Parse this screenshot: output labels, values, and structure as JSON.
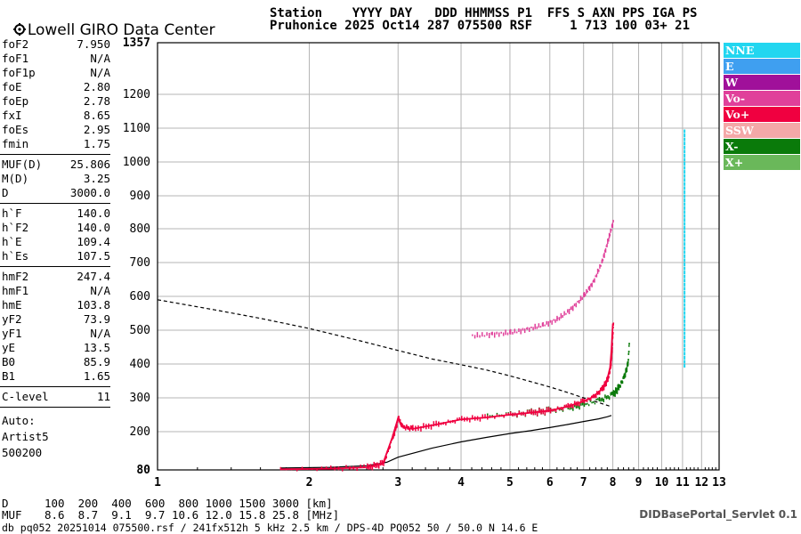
{
  "logo": {
    "text": "Lowell GIRO Data Center"
  },
  "header": {
    "line1": "Station    YYYY DAY   DDD HHMMSS P1  FFS S AXN PPS IGA PS",
    "line2": "Pruhonice 2025 Oct14 287 075500 RSF     1 713 100 03+ 21"
  },
  "params": {
    "group1": [
      {
        "k": "foF2",
        "v": "7.950"
      },
      {
        "k": "foF1",
        "v": "N/A"
      },
      {
        "k": "foF1p",
        "v": "N/A"
      },
      {
        "k": "foE",
        "v": "2.80"
      },
      {
        "k": "foEp",
        "v": "2.78"
      },
      {
        "k": "fxI",
        "v": "8.65"
      },
      {
        "k": "foEs",
        "v": "2.95"
      },
      {
        "k": "fmin",
        "v": "1.75"
      }
    ],
    "group2": [
      {
        "k": "MUF(D)",
        "v": "25.806"
      },
      {
        "k": "M(D)",
        "v": "3.25"
      },
      {
        "k": "D",
        "v": "3000.0"
      }
    ],
    "group3": [
      {
        "k": "h`F",
        "v": "140.0"
      },
      {
        "k": "h`F2",
        "v": "140.0"
      },
      {
        "k": "h`E",
        "v": "109.4"
      },
      {
        "k": "h`Es",
        "v": "107.5"
      }
    ],
    "group4": [
      {
        "k": "hmF2",
        "v": "247.4"
      },
      {
        "k": "hmF1",
        "v": "N/A"
      },
      {
        "k": "hmE",
        "v": "103.8"
      },
      {
        "k": "yF2",
        "v": "73.9"
      },
      {
        "k": "yF1",
        "v": "N/A"
      },
      {
        "k": "yE",
        "v": "13.5"
      },
      {
        "k": "B0",
        "v": "85.9"
      },
      {
        "k": "B1",
        "v": "1.65"
      }
    ],
    "group5": [
      {
        "k": "C-level",
        "v": "11"
      }
    ],
    "auto": [
      "Auto:",
      "Artist5",
      "500200"
    ]
  },
  "legend": [
    {
      "label": "NNE",
      "color": "#22d6f0"
    },
    {
      "label": "E",
      "color": "#3f9ff0"
    },
    {
      "label": "W",
      "color": "#a0109a"
    },
    {
      "label": "Vo-",
      "color": "#e0409a"
    },
    {
      "label": "Vo+",
      "color": "#f00040"
    },
    {
      "label": "SSW",
      "color": "#f4a8a8"
    },
    {
      "label": "X-",
      "color": "#0a7a0a"
    },
    {
      "label": "X+",
      "color": "#6ab85a"
    }
  ],
  "footer": {
    "d_label": "D",
    "d_values": "100  200  400  600  800 1000 1500 3000 [km]",
    "muf_label": "MUF",
    "muf_values": "8.6  8.7  9.1  9.7 10.6 12.0 15.8 25.8 [MHz]",
    "servlet": "DIDBasePortal_Servlet 0.1",
    "file": "db pq052 20251014 075500.rsf / 241fx512h 5 kHz 2.5 km / DPS-4D PQ052 50 / 50.0 N 14.6 E"
  },
  "chart_data": {
    "type": "scatter",
    "xlim": [
      1,
      13
    ],
    "ylim": [
      80,
      1357
    ],
    "x_ticks": [
      "1",
      "2",
      "3",
      "4",
      "5",
      "6",
      "7",
      "8",
      "9",
      "10",
      "11",
      "12",
      "13"
    ],
    "y_ticks": [
      "80",
      "200",
      "300",
      "400",
      "500",
      "600",
      "700",
      "800",
      "900",
      "1000",
      "1100",
      "1200",
      "1357"
    ],
    "y_tick_values": [
      80,
      200,
      300,
      400,
      500,
      600,
      700,
      800,
      900,
      1000,
      1100,
      1200,
      1357
    ],
    "y_ticks_bold": [
      "80",
      "1357"
    ],
    "grid": true,
    "x_scale": "log",
    "legend_position": "right",
    "o_trace": {
      "color": "#f00040",
      "x": [
        1.75,
        2.2,
        2.6,
        2.8,
        2.92,
        3.0,
        3.05,
        3.2,
        3.6,
        4.0,
        4.5,
        5.0,
        5.5,
        6.0,
        6.5,
        7.0,
        7.3,
        7.6,
        7.8,
        7.9,
        7.95,
        8.0
      ],
      "y": [
        82,
        84,
        88,
        100,
        180,
        240,
        215,
        208,
        222,
        236,
        242,
        250,
        256,
        262,
        274,
        290,
        302,
        325,
        355,
        390,
        440,
        520
      ]
    },
    "x_trace": {
      "color": "#0a7a0a",
      "x": [
        4.5,
        5.0,
        5.5,
        6.0,
        6.5,
        7.0,
        7.5,
        8.0,
        8.2,
        8.4,
        8.55,
        8.6
      ],
      "y": [
        246,
        250,
        256,
        262,
        270,
        280,
        292,
        310,
        330,
        360,
        400,
        460
      ]
    },
    "f_mode_trace": {
      "color": "#e0409a",
      "x": [
        4.2,
        4.6,
        5.0,
        5.4,
        5.8,
        6.2,
        6.6,
        7.0,
        7.3,
        7.6,
        7.8,
        8.0
      ],
      "y": [
        480,
        485,
        490,
        500,
        512,
        530,
        560,
        600,
        640,
        700,
        760,
        820
      ]
    },
    "profile_solid": {
      "color": "#000000",
      "x": [
        1.75,
        2.2,
        2.6,
        2.85,
        3.0,
        3.5,
        4.0,
        4.5,
        5.0,
        5.5,
        6.0,
        6.5,
        7.0,
        7.5,
        7.8,
        7.95
      ],
      "y": [
        86,
        88,
        93,
        104,
        120,
        148,
        168,
        182,
        194,
        203,
        212,
        221,
        230,
        238,
        244,
        248
      ]
    },
    "profile_dashed": {
      "color": "#000000",
      "x": [
        1.0,
        1.3,
        1.6,
        2.0,
        2.5,
        3.0,
        3.5,
        4.0,
        4.5,
        5.0,
        5.5,
        6.0,
        6.5,
        7.0,
        7.5,
        7.9
      ],
      "y": [
        590,
        560,
        535,
        505,
        470,
        440,
        415,
        398,
        382,
        365,
        348,
        332,
        316,
        300,
        286,
        275
      ]
    },
    "vertical_echo": {
      "color": "#22d6f0",
      "x": 11.1,
      "y_range": [
        400,
        1100
      ]
    }
  }
}
